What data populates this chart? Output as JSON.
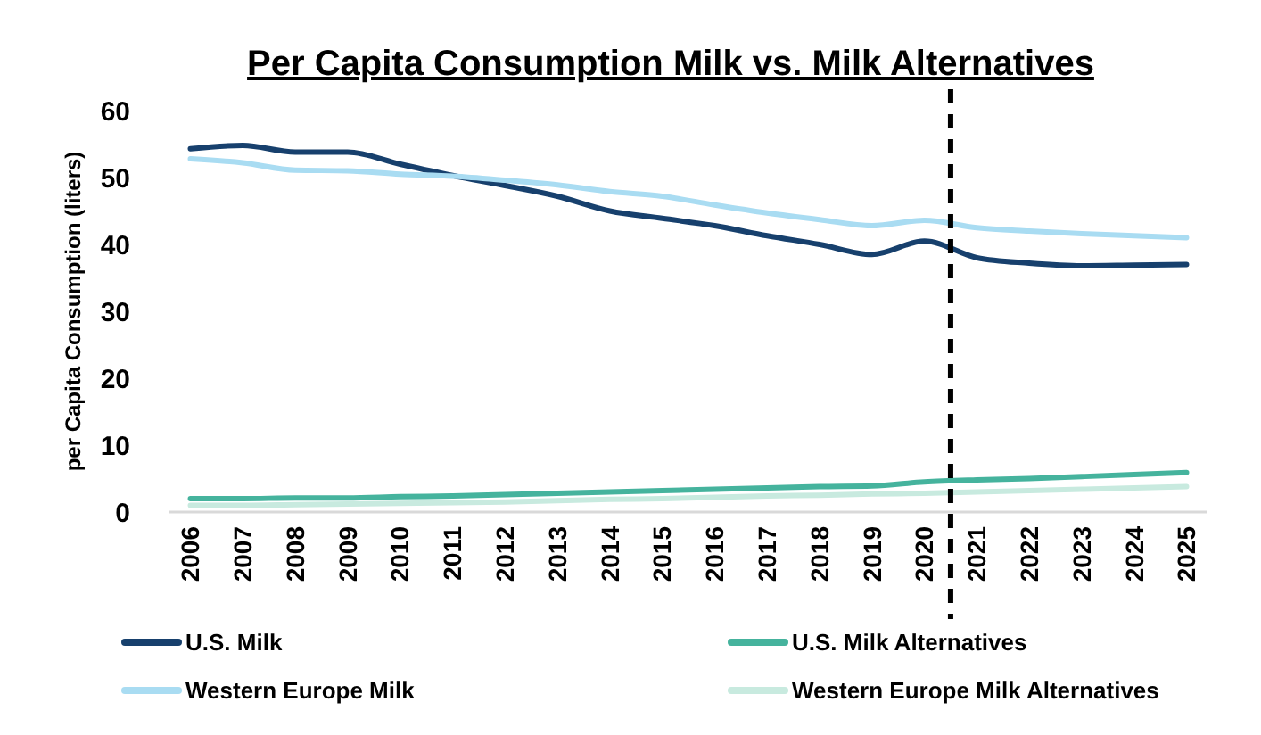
{
  "chart_data": {
    "type": "line",
    "title": "Per Capita Consumption Milk vs. Milk Alternatives",
    "ylabel": "per Capita Consumption (liters)",
    "x": [
      2006,
      2007,
      2008,
      2009,
      2010,
      2011,
      2012,
      2013,
      2014,
      2015,
      2016,
      2017,
      2018,
      2019,
      2020,
      2021,
      2022,
      2023,
      2024,
      2025
    ],
    "xlim": [
      2005.6,
      2025.4
    ],
    "xticks": [
      2006,
      2007,
      2008,
      2009,
      2010,
      2011,
      2012,
      2013,
      2014,
      2015,
      2016,
      2017,
      2018,
      2019,
      2020,
      2021,
      2022,
      2023,
      2024,
      2025
    ],
    "ylim": [
      0,
      60
    ],
    "yticks": [
      0,
      10,
      20,
      30,
      40,
      50,
      60
    ],
    "grid": false,
    "legend": "bottom",
    "line_style": "solid",
    "ref_lines": [
      {
        "axis": "x",
        "value": 2020.5,
        "color": "#000000",
        "line_style": "dashed"
      }
    ],
    "series": [
      {
        "name": "U.S. Milk",
        "color": "#17406d",
        "values": [
          54.3,
          54.8,
          53.8,
          53.8,
          52,
          50.3,
          48.8,
          47.2,
          45,
          43.9,
          42.8,
          41.3,
          40,
          38.5,
          40.5,
          38,
          37.2,
          36.8,
          36.9,
          37
        ]
      },
      {
        "name": "U.S. Milk Alternatives",
        "color": "#45b39d",
        "values": [
          2,
          2,
          2.1,
          2.1,
          2.3,
          2.4,
          2.6,
          2.8,
          3,
          3.2,
          3.4,
          3.6,
          3.8,
          3.9,
          4.5,
          4.8,
          5,
          5.3,
          5.6,
          5.9
        ]
      },
      {
        "name": "Western Europe Milk",
        "color": "#a9dcf2",
        "values": [
          52.8,
          52.2,
          51.1,
          51,
          50.5,
          50.2,
          49.6,
          48.9,
          47.9,
          47.2,
          45.9,
          44.7,
          43.7,
          42.8,
          43.6,
          42.5,
          42,
          41.6,
          41.3,
          41
        ]
      },
      {
        "name": "Western Europe Milk Alternatives",
        "color": "#c8eadf",
        "values": [
          1,
          1,
          1.1,
          1.2,
          1.3,
          1.4,
          1.5,
          1.7,
          1.9,
          2,
          2.2,
          2.4,
          2.5,
          2.7,
          2.8,
          3,
          3.2,
          3.4,
          3.6,
          3.8
        ]
      }
    ]
  }
}
